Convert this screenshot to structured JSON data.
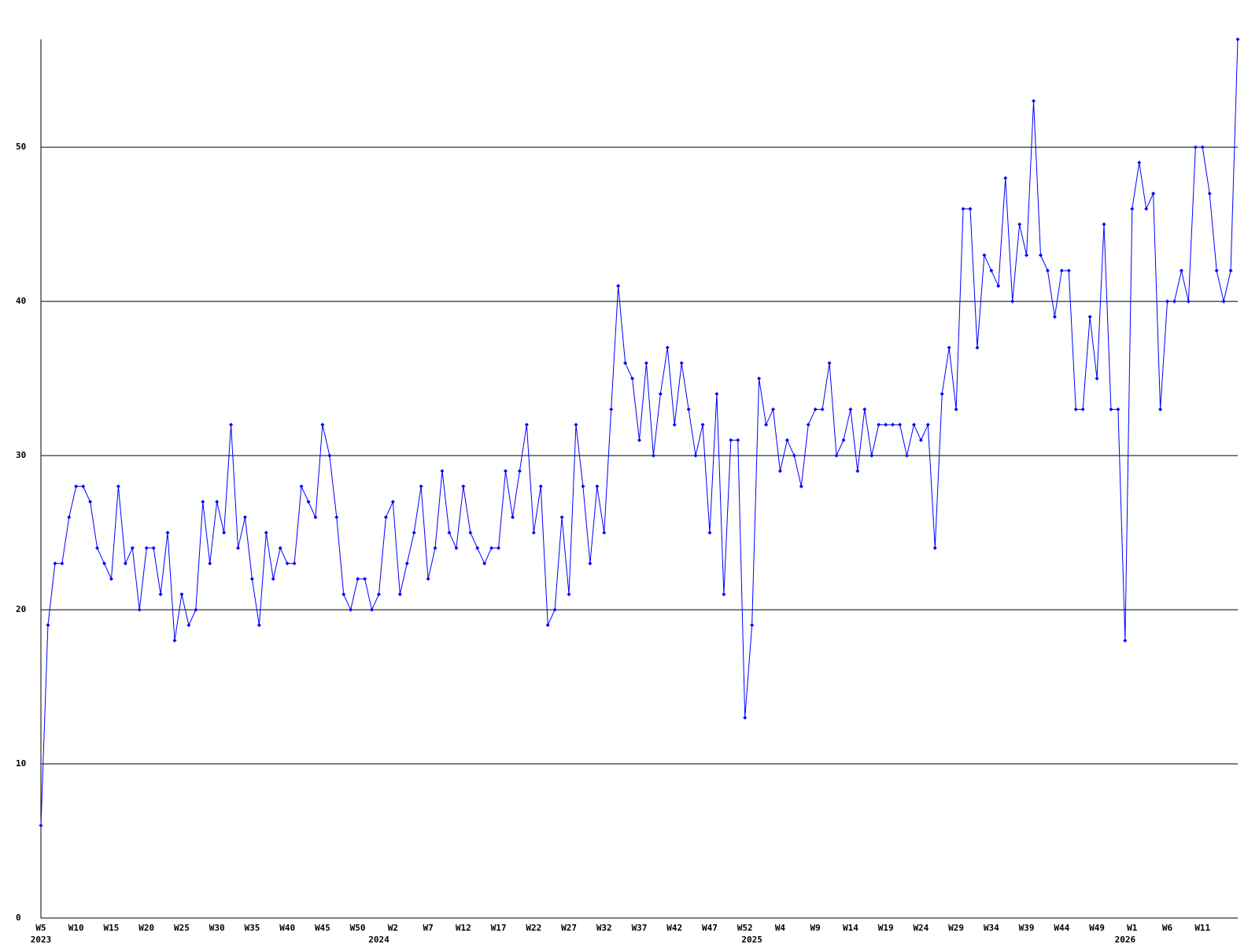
{
  "chart_data": {
    "type": "line",
    "grid": true,
    "categories": [
      "W5",
      null,
      null,
      null,
      null,
      "W10",
      null,
      null,
      null,
      null,
      "W15",
      null,
      null,
      null,
      null,
      "W20",
      null,
      null,
      null,
      null,
      "W25",
      null,
      null,
      null,
      null,
      "W30",
      null,
      null,
      null,
      null,
      "W35",
      null,
      null,
      null,
      null,
      "W40",
      null,
      null,
      null,
      null,
      "W45",
      null,
      null,
      null,
      null,
      "W50",
      null,
      null,
      null,
      null,
      "W2",
      null,
      null,
      null,
      null,
      "W7",
      null,
      null,
      null,
      null,
      "W12",
      null,
      null,
      null,
      null,
      "W17",
      null,
      null,
      null,
      null,
      "W22",
      null,
      null,
      null,
      null,
      "W27",
      null,
      null,
      null,
      null,
      "W32",
      null,
      null,
      null,
      null,
      "W37",
      null,
      null,
      null,
      null,
      "W42",
      null,
      null,
      null,
      null,
      "W47",
      null,
      null,
      null,
      null,
      "W52",
      null,
      null,
      null,
      null,
      "W4",
      null,
      null,
      null,
      null,
      "W9",
      null,
      null,
      null,
      null,
      "W14",
      null,
      null,
      null,
      null,
      "W19",
      null,
      null,
      null,
      null,
      "W24",
      null,
      null,
      null,
      null,
      "W29",
      null,
      null,
      null,
      null,
      "W34",
      null,
      null,
      null,
      null,
      "W39",
      null,
      null,
      null,
      null,
      "W44",
      null,
      null,
      null,
      null,
      "W49",
      null,
      null,
      null,
      null,
      "W1",
      null,
      null,
      null,
      null,
      "W6",
      null,
      null,
      null,
      null,
      "W11",
      null,
      null,
      null,
      null,
      null
    ],
    "category_years": [
      "2023",
      null,
      null,
      null,
      null,
      null,
      null,
      null,
      null,
      null,
      null,
      null,
      null,
      null,
      null,
      null,
      null,
      null,
      null,
      null,
      null,
      null,
      null,
      null,
      null,
      null,
      null,
      null,
      null,
      null,
      null,
      null,
      null,
      null,
      null,
      null,
      null,
      null,
      null,
      null,
      null,
      null,
      null,
      null,
      null,
      null,
      null,
      null,
      "2024",
      null,
      null,
      null,
      null,
      null,
      null,
      null,
      null,
      null,
      null,
      null,
      null,
      null,
      null,
      null,
      null,
      null,
      null,
      null,
      null,
      null,
      null,
      null,
      null,
      null,
      null,
      null,
      null,
      null,
      null,
      null,
      null,
      null,
      null,
      null,
      null,
      null,
      null,
      null,
      null,
      null,
      null,
      null,
      null,
      null,
      null,
      null,
      null,
      null,
      null,
      null,
      null,
      "2025",
      null,
      null,
      null,
      null,
      null,
      null,
      null,
      null,
      null,
      null,
      null,
      null,
      null,
      null,
      null,
      null,
      null,
      null,
      null,
      null,
      null,
      null,
      null,
      null,
      null,
      null,
      null,
      null,
      null,
      null,
      null,
      null,
      null,
      null,
      null,
      null,
      null,
      null,
      null,
      null,
      null,
      null,
      null,
      null,
      null,
      null,
      null,
      null,
      null,
      null,
      null,
      null,
      "2026",
      null,
      null,
      null,
      null,
      null,
      null,
      null,
      null,
      null,
      null,
      null,
      null,
      null,
      null,
      null,
      null
    ],
    "series": [
      {
        "color": "#0000ff",
        "values": [
          6,
          19,
          23,
          23,
          26,
          28,
          28,
          27,
          24,
          23,
          22,
          28,
          23,
          24,
          20,
          24,
          24,
          21,
          25,
          18,
          21,
          19,
          20,
          27,
          23,
          27,
          25,
          32,
          24,
          26,
          22,
          19,
          25,
          22,
          24,
          23,
          23,
          28,
          27,
          26,
          32,
          30,
          26,
          21,
          20,
          22,
          22,
          20,
          21,
          26,
          27,
          21,
          23,
          25,
          28,
          22,
          24,
          29,
          25,
          24,
          28,
          25,
          24,
          23,
          24,
          24,
          29,
          26,
          29,
          32,
          25,
          28,
          19,
          20,
          26,
          21,
          32,
          28,
          23,
          28,
          25,
          33,
          41,
          36,
          35,
          31,
          36,
          30,
          34,
          37,
          32,
          36,
          33,
          30,
          32,
          25,
          34,
          21,
          31,
          31,
          13,
          19,
          35,
          32,
          33,
          29,
          31,
          30,
          28,
          32,
          33,
          33,
          36,
          30,
          31,
          33,
          29,
          33,
          30,
          32,
          32,
          32,
          32,
          30,
          32,
          31,
          32,
          24,
          34,
          37,
          33,
          46,
          46,
          37,
          43,
          42,
          41,
          48,
          40,
          45,
          43,
          53,
          43,
          42,
          39,
          42,
          42,
          33,
          33,
          39,
          35,
          45,
          33,
          33,
          18,
          46,
          49,
          46,
          47,
          33,
          40,
          40,
          42,
          40,
          50,
          50,
          47,
          42,
          40,
          42,
          57
        ]
      }
    ],
    "ylim": [
      0,
      57
    ],
    "yticks": [
      0,
      10,
      20,
      30,
      40,
      50
    ]
  }
}
